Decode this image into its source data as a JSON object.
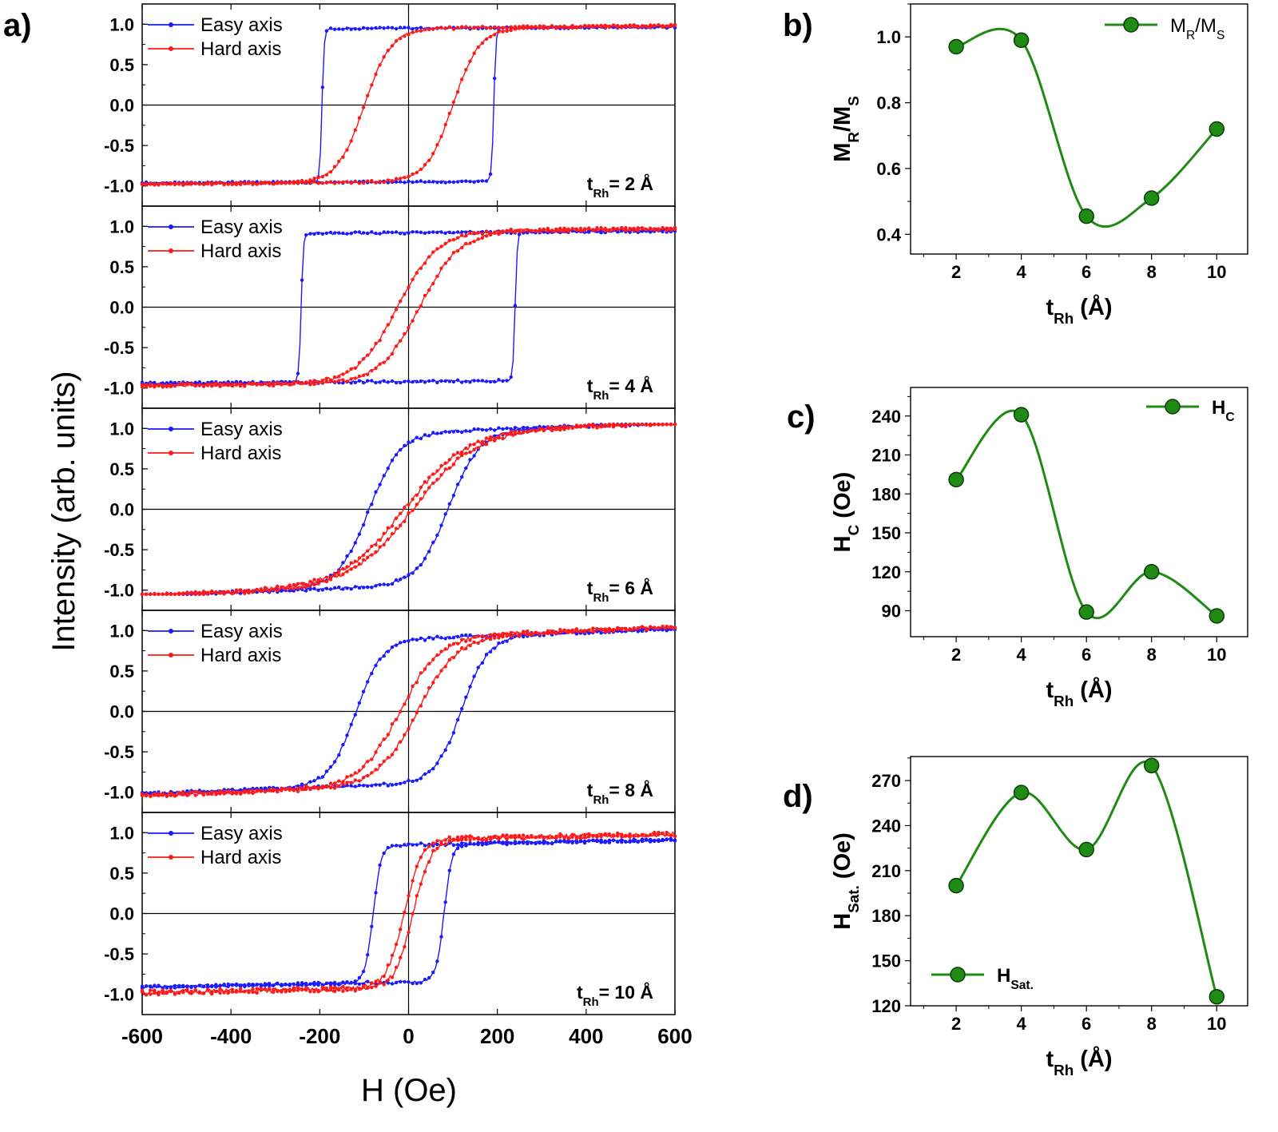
{
  "panel_labels": {
    "a": "a)",
    "b": "b)",
    "c": "c)",
    "d": "d)"
  },
  "chart_data": [
    {
      "type": "line",
      "panel": "a",
      "title": "",
      "xlabel": "H (Oe)",
      "ylabel": "Intensity (arb. units)",
      "xlim": [
        -600,
        600
      ],
      "ylim": [
        -1.25,
        1.25
      ],
      "xticks": [
        "-600",
        "-400",
        "-200",
        "0",
        "200",
        "400",
        "600"
      ],
      "yticks": [
        "1.0",
        "0.5",
        "0.0",
        "-0.5",
        "-1.0"
      ],
      "legend": [
        "Easy axis",
        "Hard axis"
      ],
      "colors": {
        "easy": "#1a1aff",
        "hard": "#ff1a1a"
      },
      "subplots": [
        {
          "annotation": {
            "main": "t",
            "sub": "Rh",
            "rest": "= 2 Å"
          },
          "easy": {
            "hc_down": -195,
            "hc_up": 192,
            "width": 5,
            "mr": 0.92,
            "ms": 0.95,
            "tilt": 5e-05,
            "noise": 0.012
          },
          "hard": {
            "hc_down": -100,
            "hc_up": 100,
            "width": 60,
            "mr": 0.5,
            "ms": 0.95,
            "tilt": 0.0001,
            "noise": 0.015
          }
        },
        {
          "annotation": {
            "main": "t",
            "sub": "Rh",
            "rest": "= 4 Å"
          },
          "easy": {
            "hc_down": -242,
            "hc_up": 240,
            "width": 5,
            "mr": 0.88,
            "ms": 0.92,
            "tilt": 8e-05,
            "noise": 0.015
          },
          "hard": {
            "hc_down": -25,
            "hc_up": 25,
            "width": 90,
            "mr": 0.15,
            "ms": 0.94,
            "tilt": 0.0001,
            "noise": 0.02
          }
        },
        {
          "annotation": {
            "main": "t",
            "sub": "Rh",
            "rest": "= 6 Å"
          },
          "easy": {
            "hc_down": -90,
            "hc_up": 90,
            "width": 70,
            "mr": 0.55,
            "ms": 0.95,
            "tilt": 0.0004,
            "noise": 0.018
          },
          "hard": {
            "hc_down": -10,
            "hc_up": 10,
            "width": 140,
            "mr": 0.05,
            "ms": 0.95,
            "tilt": 0.0004,
            "noise": 0.025
          }
        },
        {
          "annotation": {
            "main": "t",
            "sub": "Rh",
            "rest": "= 8 Å"
          },
          "easy": {
            "hc_down": -120,
            "hc_up": 120,
            "width": 60,
            "mr": 0.5,
            "ms": 0.9,
            "tilt": 0.0004,
            "noise": 0.018
          },
          "hard": {
            "hc_down": -20,
            "hc_up": 20,
            "width": 90,
            "mr": 0.05,
            "ms": 0.92,
            "tilt": 0.0004,
            "noise": 0.025
          }
        },
        {
          "annotation": {
            "main": "t",
            "sub": "Rh",
            "rest": "= 10 Å"
          },
          "easy": {
            "hc_down": -80,
            "hc_up": 80,
            "width": 18,
            "mr": 0.7,
            "ms": 0.85,
            "tilt": 0.0002,
            "noise": 0.018
          },
          "hard": {
            "hc_down": -10,
            "hc_up": 10,
            "width": 40,
            "mr": 0.15,
            "ms": 0.92,
            "tilt": 0.0002,
            "noise": 0.03
          }
        }
      ]
    },
    {
      "type": "line",
      "panel": "b",
      "xlabel": {
        "main": "t",
        "sub": "Rh",
        "rest": " (Å)"
      },
      "ylabel": {
        "main": "M",
        "sub": "R",
        "mid": "/M",
        "sub2": "S"
      },
      "legend": {
        "main": "M",
        "sub": "R",
        "mid": "/M",
        "sub2": "S"
      },
      "color": "#1f8a14",
      "x": [
        2,
        4,
        6,
        8,
        10
      ],
      "y": [
        0.97,
        0.99,
        0.455,
        0.51,
        0.72
      ],
      "xlim": [
        0.6,
        10.95
      ],
      "ylim": [
        0.34,
        1.1
      ],
      "xticks": [
        "2",
        "4",
        "6",
        "8",
        "10"
      ],
      "yticks": [
        "0.4",
        "0.6",
        "0.8",
        "1.0"
      ],
      "ytick_values": [
        0.4,
        0.6,
        0.8,
        1.0
      ]
    },
    {
      "type": "line",
      "panel": "c",
      "xlabel": {
        "main": "t",
        "sub": "Rh",
        "rest": " (Å)"
      },
      "ylabel": {
        "main": "H",
        "sub": "C",
        "rest": " (Oe)"
      },
      "legend": {
        "main": "H",
        "sub": "C"
      },
      "color": "#1f8a14",
      "x": [
        2,
        4,
        6,
        8,
        10
      ],
      "y": [
        191,
        241,
        89,
        120,
        86
      ],
      "xlim": [
        0.6,
        10.95
      ],
      "ylim": [
        70,
        262
      ],
      "xticks": [
        "2",
        "4",
        "6",
        "8",
        "10"
      ],
      "yticks": [
        "90",
        "120",
        "150",
        "180",
        "210",
        "240"
      ],
      "ytick_values": [
        90,
        120,
        150,
        180,
        210,
        240
      ]
    },
    {
      "type": "line",
      "panel": "d",
      "xlabel": {
        "main": "t",
        "sub": "Rh",
        "rest": " (Å)"
      },
      "ylabel": {
        "main": "H",
        "sub": "Sat.",
        "rest": " (Oe)"
      },
      "legend": {
        "main": "H",
        "sub": "Sat."
      },
      "color": "#1f8a14",
      "x": [
        2,
        4,
        6,
        8,
        10
      ],
      "y": [
        200,
        262,
        224,
        280,
        126
      ],
      "xlim": [
        0.6,
        10.95
      ],
      "ylim": [
        120,
        286
      ],
      "xticks": [
        "2",
        "4",
        "6",
        "8",
        "10"
      ],
      "yticks": [
        "120",
        "150",
        "180",
        "210",
        "240",
        "270"
      ],
      "ytick_values": [
        120,
        150,
        180,
        210,
        240,
        270
      ]
    }
  ]
}
